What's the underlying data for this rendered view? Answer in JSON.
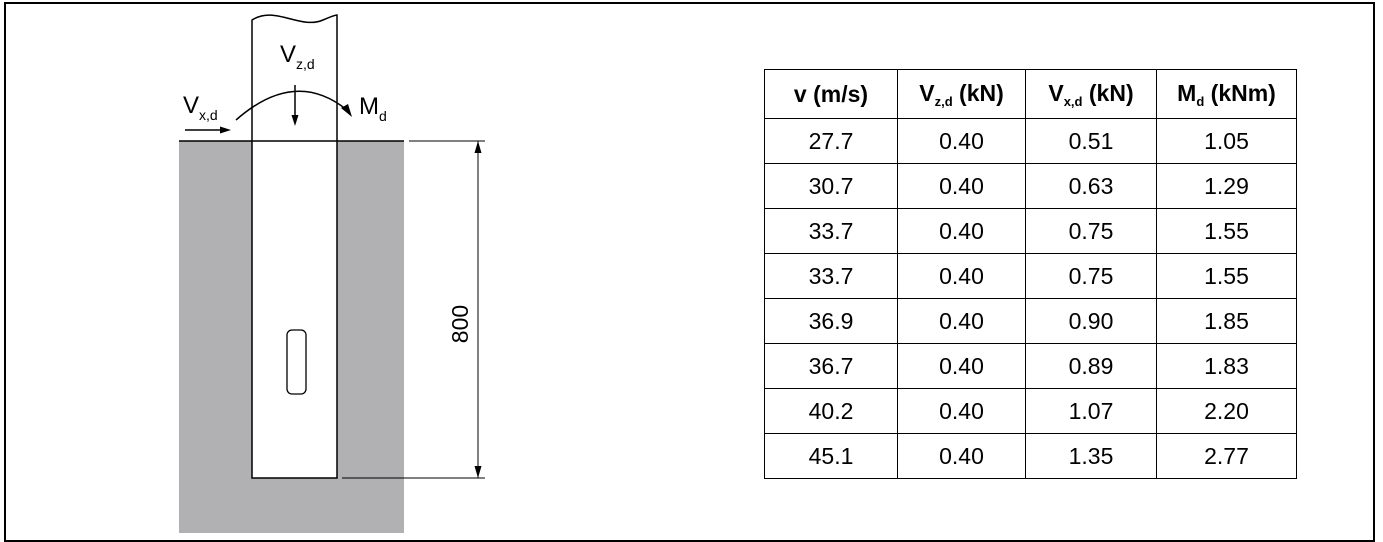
{
  "diagram": {
    "vz_main": "V",
    "vz_sub": "z,d",
    "vx_main": "V",
    "vx_sub": "x,d",
    "md_main": "M",
    "md_sub": "d",
    "depth_dim": "800"
  },
  "table": {
    "headers": [
      {
        "main": "v (m/s)",
        "sub": "",
        "suffix": ""
      },
      {
        "main": "V",
        "sub": "z,d",
        "suffix": " (kN)"
      },
      {
        "main": "V",
        "sub": "x,d",
        "suffix": " (kN)"
      },
      {
        "main": "M",
        "sub": "d",
        "suffix": " (kNm)"
      }
    ],
    "rows": [
      [
        "27.7",
        "0.40",
        "0.51",
        "1.05"
      ],
      [
        "30.7",
        "0.40",
        "0.63",
        "1.29"
      ],
      [
        "33.7",
        "0.40",
        "0.75",
        "1.55"
      ],
      [
        "33.7",
        "0.40",
        "0.75",
        "1.55"
      ],
      [
        "36.9",
        "0.40",
        "0.90",
        "1.85"
      ],
      [
        "36.7",
        "0.40",
        "0.89",
        "1.83"
      ],
      [
        "40.2",
        "0.40",
        "1.07",
        "2.20"
      ],
      [
        "45.1",
        "0.40",
        "1.35",
        "2.77"
      ]
    ]
  }
}
